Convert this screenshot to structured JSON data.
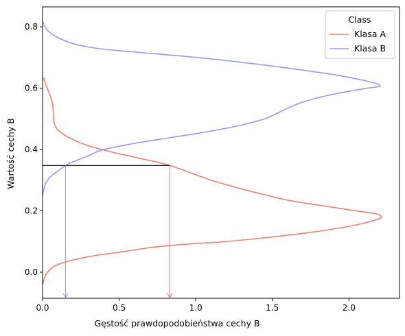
{
  "chart_data": {
    "type": "line",
    "xlabel": "Gęstość prawdopodobieństwa cechy B",
    "ylabel": "Wartość cechy B",
    "xlim": [
      0.0,
      2.33
    ],
    "ylim": [
      -0.085,
      0.865
    ],
    "xticks": [
      0.0,
      0.5,
      1.0,
      1.5,
      2.0
    ],
    "xtick_labels": [
      "0.0",
      "0.5",
      "1.0",
      "1.5",
      "2.0"
    ],
    "yticks": [
      0.0,
      0.2,
      0.4,
      0.6,
      0.8
    ],
    "ytick_labels": [
      "0.0",
      "0.2",
      "0.4",
      "0.6",
      "0.8"
    ],
    "grid": false,
    "legend": {
      "title": "Class",
      "placement": "top-right"
    },
    "series": [
      {
        "name": "Klasa A",
        "color": "#f08070",
        "points": [
          [
            0.0,
            -0.04
          ],
          [
            0.02,
            -0.01
          ],
          [
            0.05,
            0.01
          ],
          [
            0.1,
            0.025
          ],
          [
            0.2,
            0.04
          ],
          [
            0.35,
            0.055
          ],
          [
            0.5,
            0.065
          ],
          [
            0.7,
            0.08
          ],
          [
            0.9,
            0.09
          ],
          [
            1.2,
            0.1
          ],
          [
            1.5,
            0.115
          ],
          [
            1.75,
            0.13
          ],
          [
            1.95,
            0.145
          ],
          [
            2.1,
            0.16
          ],
          [
            2.2,
            0.175
          ],
          [
            2.21,
            0.182
          ],
          [
            2.18,
            0.19
          ],
          [
            2.05,
            0.2
          ],
          [
            1.85,
            0.215
          ],
          [
            1.6,
            0.235
          ],
          [
            1.35,
            0.265
          ],
          [
            1.1,
            0.3
          ],
          [
            0.83,
            0.348
          ],
          [
            0.6,
            0.375
          ],
          [
            0.45,
            0.392
          ],
          [
            0.3,
            0.412
          ],
          [
            0.2,
            0.432
          ],
          [
            0.12,
            0.455
          ],
          [
            0.08,
            0.48
          ],
          [
            0.07,
            0.52
          ],
          [
            0.065,
            0.55
          ],
          [
            0.05,
            0.575
          ],
          [
            0.03,
            0.6
          ],
          [
            0.015,
            0.62
          ],
          [
            0.005,
            0.635
          ]
        ]
      },
      {
        "name": "Klasa B",
        "color": "#9999f2",
        "points": [
          [
            0.0,
            0.25
          ],
          [
            0.02,
            0.29
          ],
          [
            0.06,
            0.315
          ],
          [
            0.1,
            0.33
          ],
          [
            0.15,
            0.348
          ],
          [
            0.2,
            0.36
          ],
          [
            0.3,
            0.38
          ],
          [
            0.4,
            0.4
          ],
          [
            0.6,
            0.42
          ],
          [
            0.85,
            0.44
          ],
          [
            1.1,
            0.46
          ],
          [
            1.3,
            0.48
          ],
          [
            1.45,
            0.5
          ],
          [
            1.58,
            0.53
          ],
          [
            1.7,
            0.555
          ],
          [
            1.85,
            0.575
          ],
          [
            2.0,
            0.59
          ],
          [
            2.12,
            0.6
          ],
          [
            2.2,
            0.606
          ],
          [
            2.18,
            0.615
          ],
          [
            2.1,
            0.625
          ],
          [
            1.95,
            0.64
          ],
          [
            1.75,
            0.655
          ],
          [
            1.5,
            0.672
          ],
          [
            1.2,
            0.69
          ],
          [
            0.9,
            0.705
          ],
          [
            0.55,
            0.72
          ],
          [
            0.35,
            0.73
          ],
          [
            0.2,
            0.745
          ],
          [
            0.1,
            0.765
          ],
          [
            0.04,
            0.785
          ],
          [
            0.01,
            0.805
          ],
          [
            0.0,
            0.82
          ]
        ]
      }
    ],
    "annotations": [
      {
        "type": "horizontal-line",
        "y": 0.348,
        "x_from": 0.0,
        "x_to": 0.83,
        "color": "#000000"
      },
      {
        "type": "arrow-down",
        "x": 0.15,
        "y_from": 0.348,
        "y_to": -0.085,
        "color": "#9999f2"
      },
      {
        "type": "arrow-down",
        "x": 0.83,
        "y_from": 0.348,
        "y_to": -0.085,
        "color": "#f08070"
      }
    ]
  }
}
